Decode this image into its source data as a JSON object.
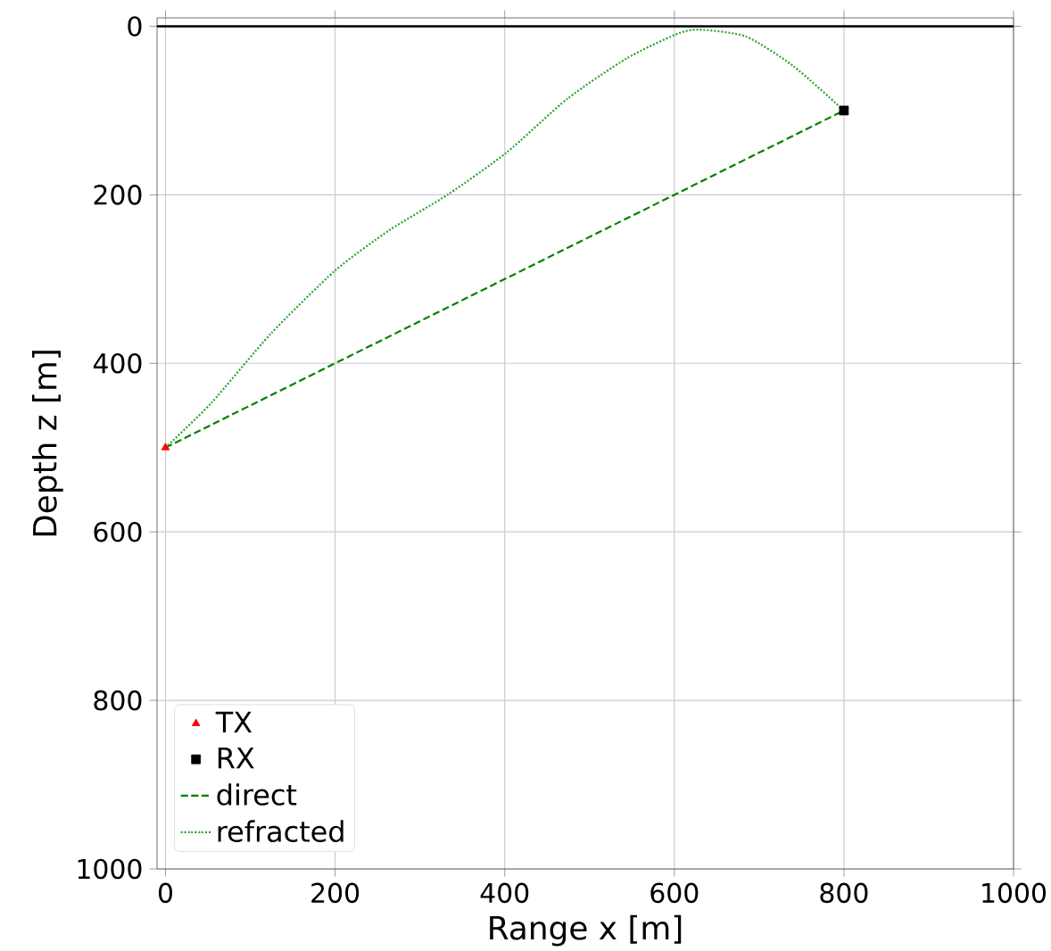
{
  "chart_data": {
    "type": "line",
    "xlabel": "Range x [m]",
    "ylabel": "Depth z [m]",
    "xlim": [
      -10,
      1000
    ],
    "ylim": [
      1000,
      -10
    ],
    "xticks": [
      0,
      200,
      400,
      600,
      800,
      1000
    ],
    "yticks": [
      0,
      200,
      400,
      600,
      800,
      1000
    ],
    "grid": true,
    "legend": "bottom left",
    "ref_lines": [
      {
        "axis": "y",
        "value": 0,
        "color": "#000000",
        "line_style": "solid"
      }
    ],
    "series": [
      {
        "name": "TX",
        "type": "scatter",
        "marker": "triangle",
        "color": "#ff0000",
        "x": [
          0
        ],
        "values": [
          500
        ]
      },
      {
        "name": "RX",
        "type": "scatter",
        "marker": "square",
        "color": "#000000",
        "x": [
          800
        ],
        "values": [
          100
        ]
      },
      {
        "name": "direct",
        "line_style": "dashed",
        "color": "#008000",
        "x": [
          0,
          800
        ],
        "values": [
          500,
          100
        ]
      },
      {
        "name": "refracted",
        "line_style": "dotted",
        "color": "#2ca02c",
        "x": [
          0,
          54,
          124,
          200,
          264,
          334,
          402,
          474,
          544,
          601,
          628,
          684,
          740,
          800
        ],
        "values": [
          500,
          447,
          365,
          290,
          242,
          199,
          150,
          86,
          38,
          10,
          4,
          12,
          47,
          100
        ]
      }
    ]
  }
}
